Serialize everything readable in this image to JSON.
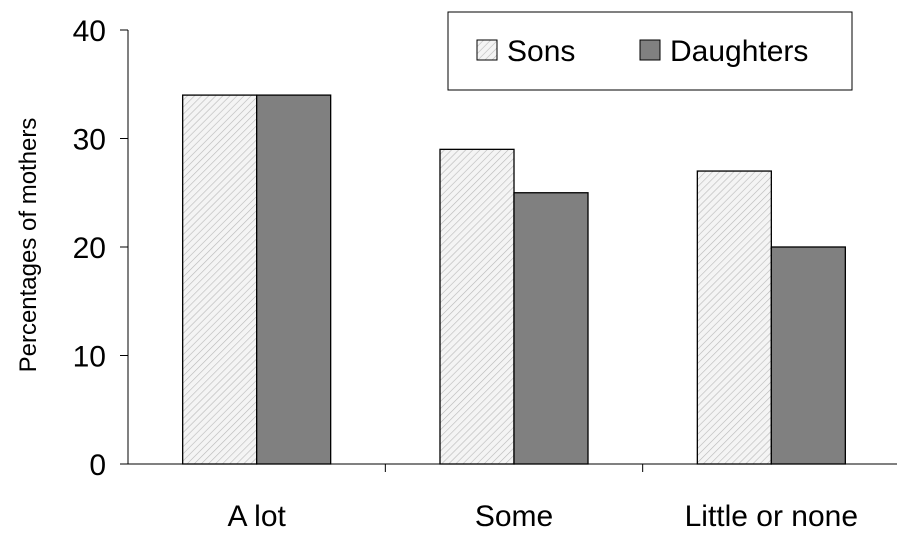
{
  "chart_data": {
    "type": "bar",
    "title": "",
    "xlabel": "",
    "ylabel": "Percentages of mothers",
    "ylim": [
      0,
      40
    ],
    "yticks": [
      0,
      10,
      20,
      30,
      40
    ],
    "categories": [
      "A lot",
      "Some",
      "Little or none"
    ],
    "series": [
      {
        "name": "Sons",
        "values": [
          34,
          29,
          27
        ],
        "color": "#f2f2f2",
        "pattern": "diagonal-hatch"
      },
      {
        "name": "Daughters",
        "values": [
          34,
          25,
          20
        ],
        "color": "#808080",
        "pattern": "solid"
      }
    ],
    "grid": false,
    "legend_position": "top-right"
  }
}
